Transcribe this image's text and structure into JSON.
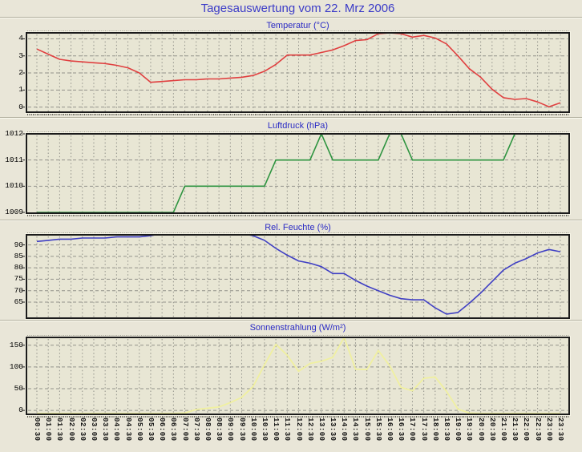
{
  "page": {
    "title": "Tagesauswertung vom 22. Mrz 2006"
  },
  "colors": {
    "title_text": "#3c3cc8",
    "chart_title_text": "#2a2ac4",
    "background": "#e9e6d8",
    "plot_background": "#e8e6d4",
    "grid": "#92928a",
    "frame": "#1b1b1b",
    "temperature_line": "#e04040",
    "pressure_line": "#2e9440",
    "humidity_line": "#4040c4",
    "radiation_line": "#f0f0a0"
  },
  "chart_data": {
    "type": "line",
    "grid": "on",
    "x_categories": [
      "00:30",
      "01:00",
      "01:30",
      "02:00",
      "02:30",
      "03:00",
      "03:30",
      "04:00",
      "04:30",
      "05:00",
      "05:30",
      "06:00",
      "06:30",
      "07:00",
      "07:30",
      "08:00",
      "08:30",
      "09:00",
      "09:30",
      "10:00",
      "10:30",
      "11:00",
      "11:30",
      "12:00",
      "12:30",
      "13:00",
      "13:30",
      "14:00",
      "14:30",
      "15:00",
      "15:30",
      "16:00",
      "16:30",
      "17:00",
      "17:30",
      "18:00",
      "18:30",
      "19:00",
      "19:30",
      "20:00",
      "20:30",
      "21:00",
      "21:30",
      "22:00",
      "22:30",
      "23:00",
      "23:30"
    ],
    "charts": [
      {
        "title": "Temperatur (°C)",
        "series": "temperature",
        "unit": "°C",
        "color": "#e04040",
        "ylim": [
          -0.3,
          4.35
        ],
        "yticks": [
          0,
          1,
          2,
          3,
          4
        ],
        "values": [
          3.4,
          3.1,
          2.8,
          2.7,
          2.65,
          2.6,
          2.55,
          2.45,
          2.3,
          2.0,
          1.45,
          1.5,
          1.55,
          1.6,
          1.6,
          1.65,
          1.65,
          1.7,
          1.75,
          1.85,
          2.1,
          2.5,
          3.05,
          3.05,
          3.05,
          3.2,
          3.35,
          3.6,
          3.9,
          3.95,
          4.3,
          4.35,
          4.3,
          4.1,
          4.2,
          4.05,
          3.7,
          3.0,
          2.25,
          1.75,
          1.05,
          0.55,
          0.45,
          0.5,
          0.3,
          0.02,
          0.25
        ]
      },
      {
        "title": "Luftdruck (hPa)",
        "series": "pressure",
        "unit": "hPa",
        "color": "#2e9440",
        "ylim": [
          1008.97,
          1012
        ],
        "yticks": [
          1009,
          1010,
          1011,
          1012
        ],
        "values": [
          1009,
          1009,
          1009,
          1009,
          1009,
          1009,
          1009,
          1009,
          1009,
          1009,
          1009,
          1009,
          1009,
          1010,
          1010,
          1010,
          1010,
          1010,
          1010,
          1010,
          1010,
          1011,
          1011,
          1011,
          1011,
          1012,
          1011,
          1011,
          1011,
          1011,
          1011,
          1012,
          1012,
          1011,
          1011,
          1011,
          1011,
          1011,
          1011,
          1011,
          1011,
          1011,
          1012,
          1012,
          1012,
          1012,
          1012
        ]
      },
      {
        "title": "Rel. Feuchte (%)",
        "series": "humidity",
        "unit": "%",
        "color": "#4040c4",
        "ylim": [
          58,
          94.4
        ],
        "yticks": [
          65,
          70,
          75,
          80,
          85,
          90
        ],
        "values": [
          91.5,
          92,
          92.5,
          92.5,
          93,
          93,
          93,
          93.5,
          93.5,
          93.5,
          94,
          95,
          95,
          95,
          95,
          95,
          95,
          95,
          95,
          94,
          92,
          88.5,
          85.5,
          83,
          82,
          80.5,
          77.5,
          77.5,
          74.5,
          72,
          70,
          68,
          66.5,
          66,
          66,
          62.5,
          59.8,
          60.5,
          64.5,
          69,
          74,
          79,
          82,
          84,
          86.5,
          88,
          87
        ]
      },
      {
        "title": "Sonnenstrahlung (W/m²)",
        "series": "radiation",
        "unit": "W/m²",
        "color": "#f0f0a0",
        "ylim": [
          -9,
          168
        ],
        "yticks": [
          0,
          50,
          100,
          150
        ],
        "values": [
          -7,
          -7,
          -7,
          -7,
          -7,
          -7,
          -7,
          -7,
          -7,
          -7,
          -7,
          -7,
          -7,
          -6,
          2,
          5,
          8,
          18,
          30,
          55,
          105,
          152,
          127,
          90,
          108,
          113,
          122,
          168,
          95,
          94,
          138,
          103,
          53,
          45,
          74,
          77,
          44,
          3,
          -6,
          -7,
          -7,
          -7,
          -7,
          -7,
          -7,
          -7,
          -7
        ]
      }
    ]
  }
}
